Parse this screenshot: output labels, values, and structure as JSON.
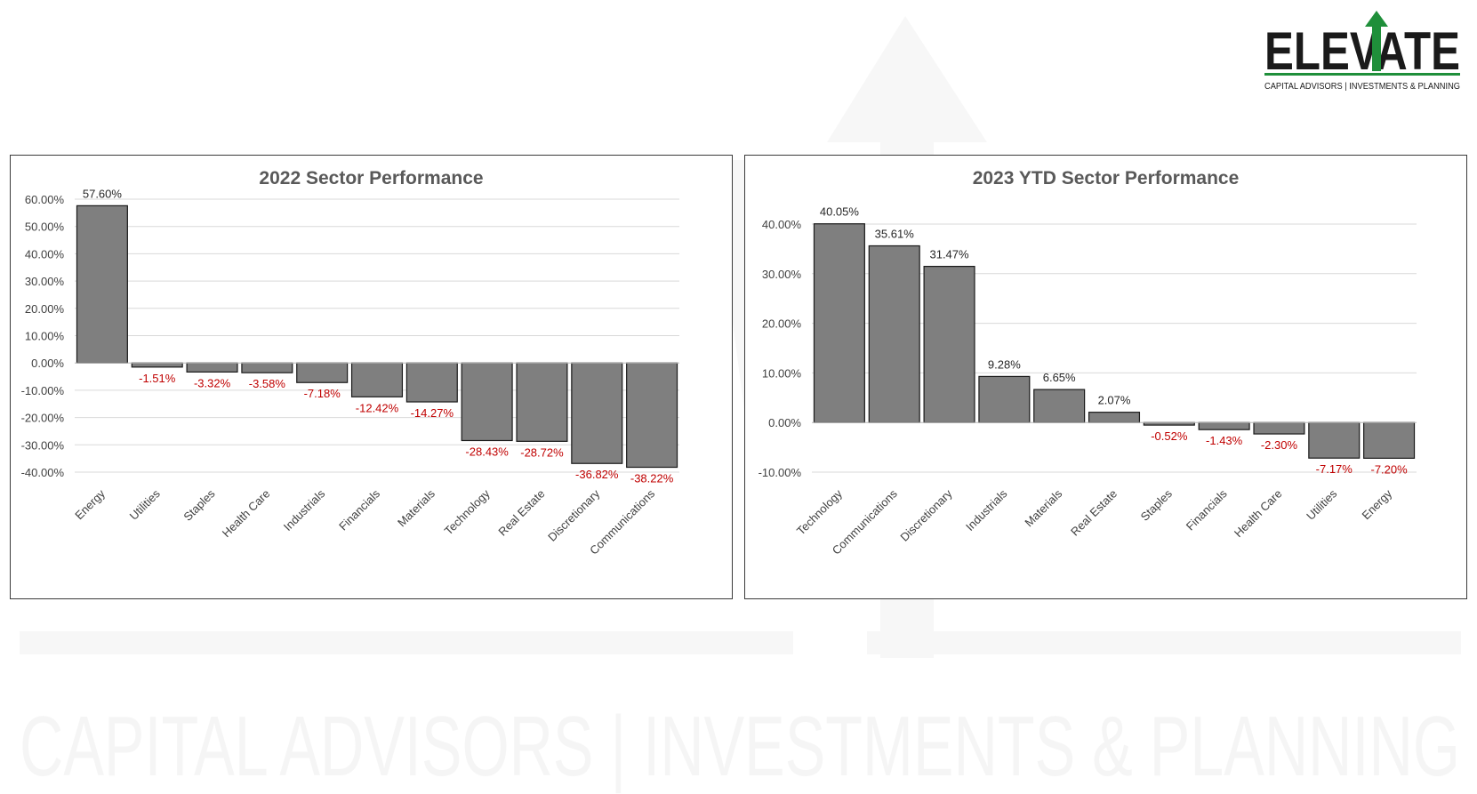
{
  "logo": {
    "wordmark": "ELEVATE",
    "tagline": "CAPITAL ADVISORS | INVESTMENTS & PLANNING",
    "colors": {
      "text": "#1a1a1a",
      "accent": "#1f8f3a"
    }
  },
  "watermark": {
    "text": "CAPITAL ADVISORS | INVESTMENTS & PLANNING"
  },
  "colors": {
    "bar_fill": "#7f7f7f",
    "bar_stroke": "#1a1a1a",
    "gridline": "#d9d9d9",
    "axis_text": "#404040",
    "positive_label": "#262626",
    "negative_label": "#c00000"
  },
  "chart_data": [
    {
      "type": "bar",
      "title": "2022 Sector Performance",
      "xlabel": "",
      "ylabel": "",
      "grid": true,
      "ylim": [
        -40,
        60
      ],
      "yticks": [
        60,
        50,
        40,
        30,
        20,
        10,
        0,
        -10,
        -20,
        -30,
        -40
      ],
      "ytick_labels": [
        "60.00%",
        "50.00%",
        "40.00%",
        "30.00%",
        "20.00%",
        "10.00%",
        "0.00%",
        "-10.00%",
        "-20.00%",
        "-30.00%",
        "-40.00%"
      ],
      "categories": [
        "Energy",
        "Utilities",
        "Staples",
        "Health Care",
        "Industrials",
        "Financials",
        "Materials",
        "Technology",
        "Real Estate",
        "Discretionary",
        "Communications"
      ],
      "values": [
        57.6,
        -1.51,
        -3.32,
        -3.58,
        -7.18,
        -12.42,
        -14.27,
        -28.43,
        -28.72,
        -36.82,
        -38.22
      ],
      "data_labels": [
        "57.60%",
        "-1.51%",
        "-3.32%",
        "-3.58%",
        "-7.18%",
        "-12.42%",
        "-14.27%",
        "-28.43%",
        "-28.72%",
        "-36.82%",
        "-38.22%"
      ]
    },
    {
      "type": "bar",
      "title": "2023 YTD Sector Performance",
      "xlabel": "",
      "ylabel": "",
      "grid": true,
      "ylim": [
        -10,
        40
      ],
      "yticks": [
        40,
        30,
        20,
        10,
        0,
        -10
      ],
      "ytick_labels": [
        "40.00%",
        "30.00%",
        "20.00%",
        "10.00%",
        "0.00%",
        "-10.00%"
      ],
      "categories": [
        "Technology",
        "Communications",
        "Discretionary",
        "Industrials",
        "Materials",
        "Real Estate",
        "Staples",
        "Financials",
        "Health Care",
        "Utilities",
        "Energy"
      ],
      "values": [
        40.05,
        35.61,
        31.47,
        9.28,
        6.65,
        2.07,
        -0.52,
        -1.43,
        -2.3,
        -7.17,
        -7.2
      ],
      "data_labels": [
        "40.05%",
        "35.61%",
        "31.47%",
        "9.28%",
        "6.65%",
        "2.07%",
        "-0.52%",
        "-1.43%",
        "-2.30%",
        "-7.17%",
        "-7.20%"
      ]
    }
  ]
}
